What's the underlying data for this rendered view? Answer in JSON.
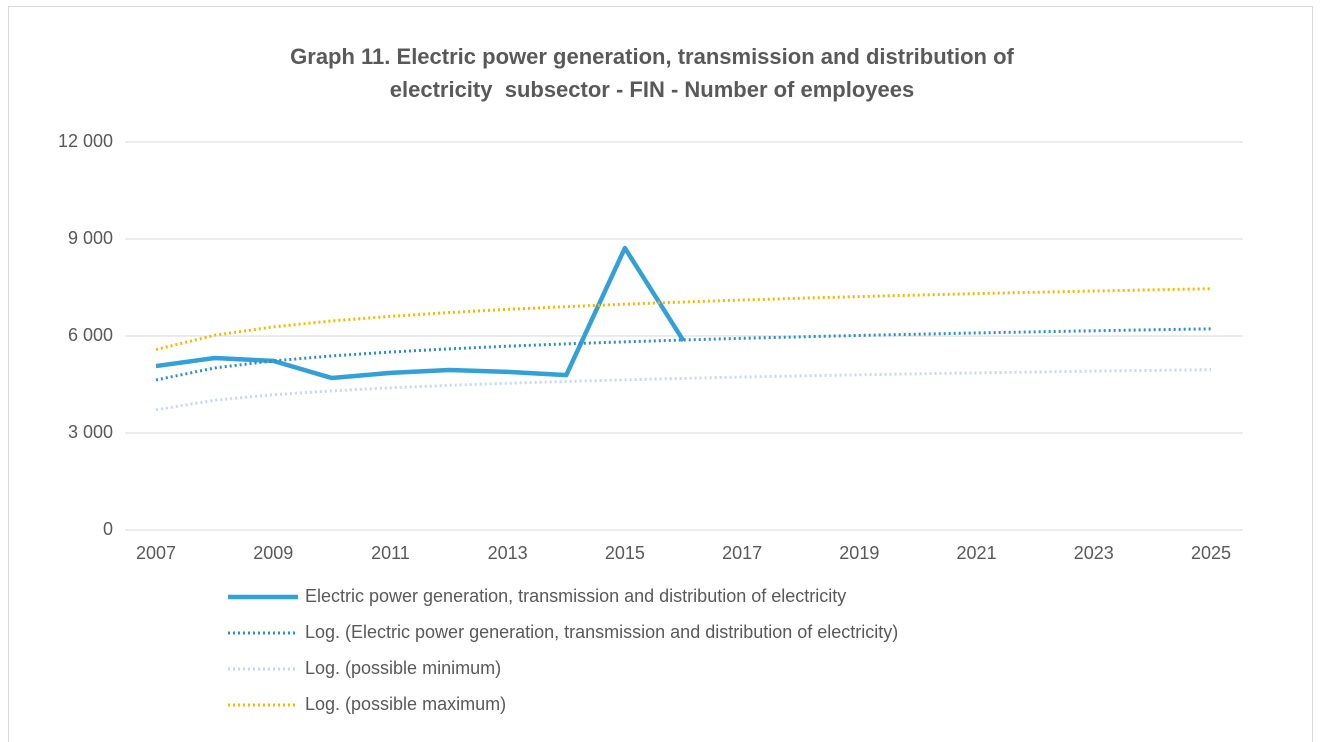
{
  "chart_data": {
    "type": "line",
    "title": [
      "Graph 11. Electric power generation, transmission and distribution of",
      "electricity  subsector - FIN - Number of employees"
    ],
    "x": [
      2007,
      2008,
      2009,
      2010,
      2011,
      2012,
      2013,
      2014,
      2015,
      2016,
      2017,
      2018,
      2019,
      2020,
      2021,
      2022,
      2023,
      2024,
      2025
    ],
    "series": [
      {
        "name": "Electric power generation, transmission and distribution of electricity",
        "color": "#35a0d5",
        "style": "solid",
        "values": [
          5070,
          5320,
          5230,
          4700,
          4860,
          4950,
          4890,
          4790,
          8720,
          5850,
          null,
          null,
          null,
          null,
          null,
          null,
          null,
          null,
          null
        ]
      },
      {
        "name": "Log. (Electric power generation, transmission and distribution of electricity)",
        "color": "#2b8fc4",
        "style": "dotted",
        "values": [
          4640,
          5012,
          5230,
          5384,
          5504,
          5602,
          5685,
          5757,
          5820,
          5877,
          5928,
          5974,
          6017,
          6057,
          6094,
          6129,
          6161,
          6192,
          6221
        ]
      },
      {
        "name": "Log. (possible minimum)",
        "color": "#c5d9ef",
        "style": "dotted",
        "values": [
          3720,
          4012,
          4183,
          4303,
          4397,
          4474,
          4539,
          4595,
          4645,
          4690,
          4730,
          4766,
          4800,
          4831,
          4860,
          4887,
          4913,
          4937,
          4959
        ]
      },
      {
        "name": "Log. (possible maximum)",
        "color": "#f5b800",
        "style": "dotted",
        "values": [
          5580,
          6023,
          6282,
          6466,
          6608,
          6725,
          6823,
          6908,
          6984,
          7052,
          7112,
          7168,
          7219,
          7266,
          7310,
          7352,
          7390,
          7427,
          7461
        ]
      }
    ],
    "xlim": [
      2007,
      2025
    ],
    "xticks": [
      2007,
      2009,
      2011,
      2013,
      2015,
      2017,
      2019,
      2021,
      2023,
      2025
    ],
    "ylim": [
      0,
      12000
    ],
    "yticks": [
      0,
      {
        "value": 3000,
        "label": "3 000"
      },
      {
        "value": 6000,
        "label": "6 000"
      },
      {
        "value": 9000,
        "label": "9 000"
      },
      {
        "value": 12000,
        "label": "12 000"
      }
    ],
    "grid": true,
    "legend": "bottom"
  }
}
